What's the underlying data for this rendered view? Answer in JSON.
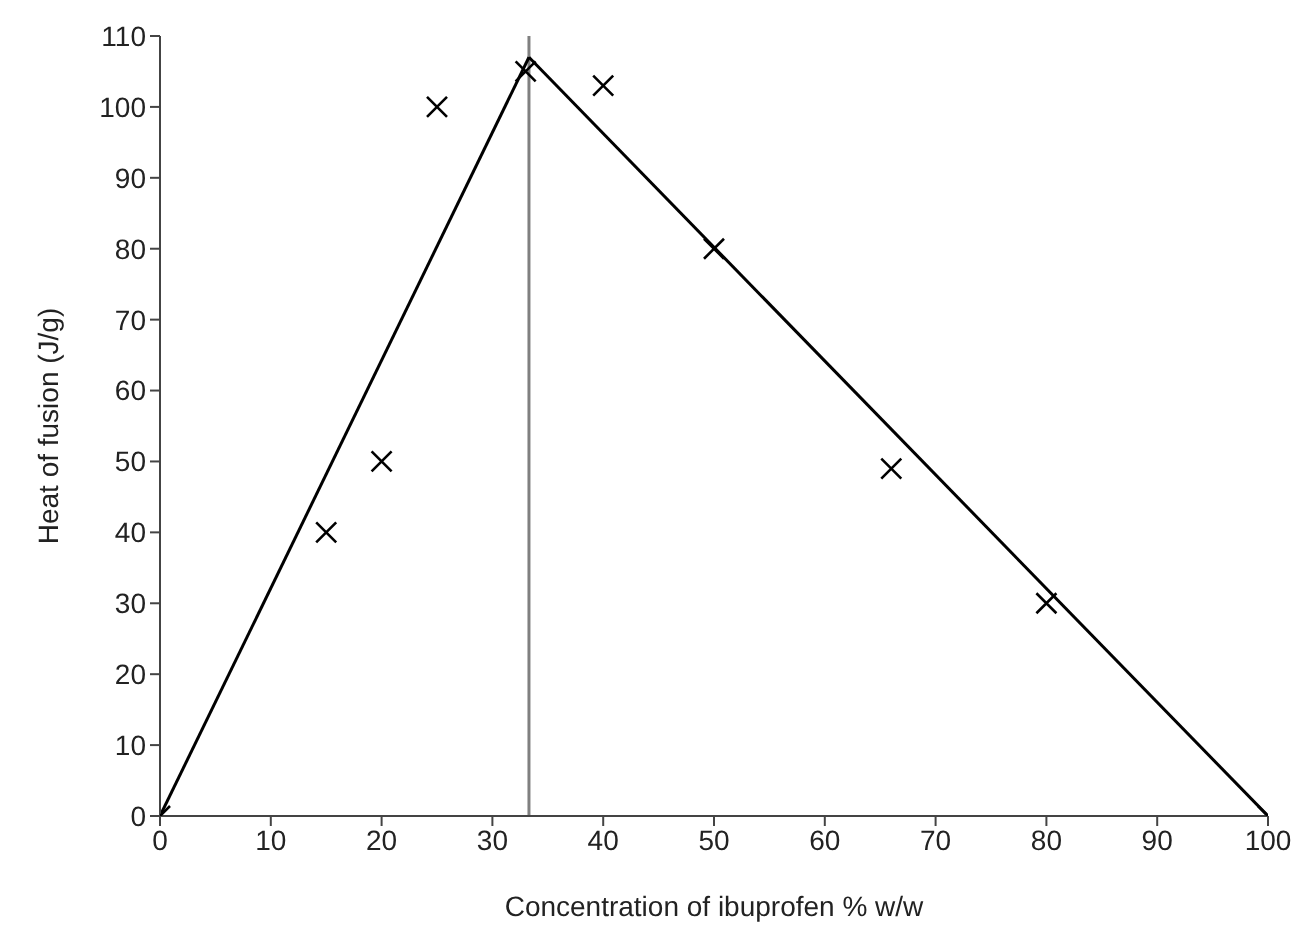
{
  "chart_data": {
    "type": "scatter",
    "xlabel": "Concentration of ibuprofen % w/w",
    "ylabel": "Heat of fusion (J/g)",
    "xlim": [
      0,
      100
    ],
    "xticks": [
      0,
      10,
      20,
      30,
      40,
      50,
      60,
      70,
      80,
      90,
      100
    ],
    "ylim": [
      0,
      110
    ],
    "yticks": [
      0,
      10,
      20,
      30,
      40,
      50,
      60,
      70,
      80,
      90,
      100,
      110
    ],
    "grid": false,
    "legend": false,
    "series": [
      {
        "color": "#000000",
        "marker": "cross",
        "x": [
          0,
          15,
          20,
          25,
          33,
          40,
          50,
          66,
          80,
          100
        ],
        "values": [
          0,
          40,
          50,
          100,
          105,
          103,
          80,
          49,
          30,
          0
        ]
      },
      {
        "type": "line",
        "color": "#000000",
        "marker": "none",
        "line_style": "solid",
        "x": [
          0,
          33.3
        ],
        "values": [
          0,
          107
        ]
      },
      {
        "type": "line",
        "color": "#000000",
        "marker": "none",
        "line_style": "solid",
        "x": [
          33.3,
          100
        ],
        "values": [
          107,
          0
        ]
      }
    ],
    "ref_lines": [
      {
        "axis": "x",
        "value": 33.3,
        "color": "#808080"
      }
    ]
  }
}
